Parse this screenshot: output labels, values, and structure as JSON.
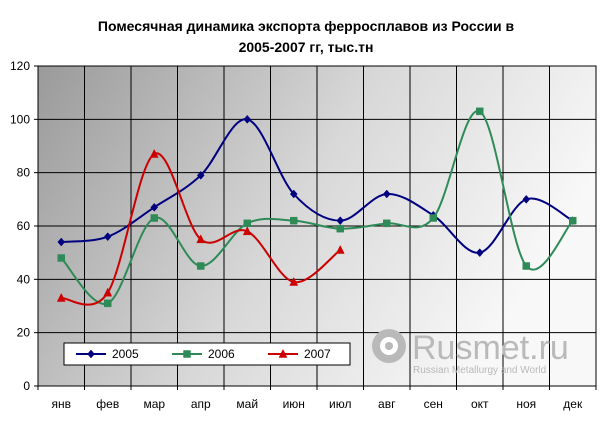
{
  "chart_data": {
    "type": "line",
    "title_lines": [
      "Помесячная динамика экспорта ферросплавов из России в",
      "2005-2007 гг, тыс.тн"
    ],
    "categories": [
      "янв",
      "фев",
      "мар",
      "апр",
      "май",
      "июн",
      "июл",
      "авг",
      "сен",
      "окт",
      "ноя",
      "дек"
    ],
    "ylim": [
      0,
      120
    ],
    "yticks": [
      0,
      20,
      40,
      60,
      80,
      100,
      120
    ],
    "grid": "both",
    "legend_position": "bottom-left",
    "series": [
      {
        "name": "2005",
        "color": "#000080",
        "marker": "diamond",
        "values": [
          54,
          56,
          67,
          79,
          100,
          72,
          62,
          72,
          64,
          50,
          70,
          62
        ]
      },
      {
        "name": "2006",
        "color": "#2e8b57",
        "marker": "square",
        "values": [
          48,
          31,
          63,
          45,
          61,
          62,
          59,
          61,
          63,
          103,
          45,
          62
        ]
      },
      {
        "name": "2007",
        "color": "#cc0000",
        "marker": "triangle",
        "values": [
          33,
          35,
          87,
          55,
          58,
          39,
          51,
          null,
          null,
          null,
          null,
          null
        ]
      }
    ]
  },
  "watermark": {
    "brand": "Rusmet.ru",
    "tagline": "Russian Metallurgy and World",
    "icon": "rusmet-logo-icon"
  }
}
